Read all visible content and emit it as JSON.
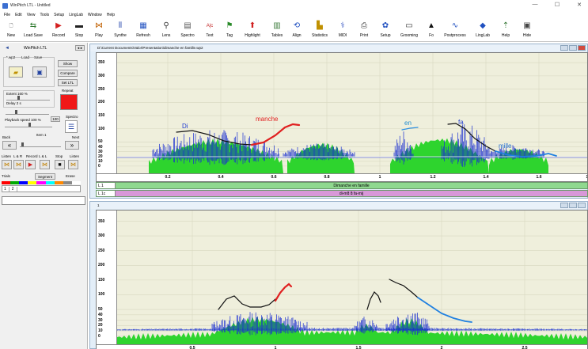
{
  "app_title": "WinPitch LTL - Untitled",
  "window_controls": [
    "—",
    "☐",
    "✕"
  ],
  "menu": [
    "File",
    "Edit",
    "View",
    "Tools",
    "Setup",
    "LingLab",
    "Window",
    "Help"
  ],
  "toolbar": [
    {
      "label": "New",
      "icon": "new-file-icon",
      "glyph": "🗋",
      "color": "#333333"
    },
    {
      "label": "Load Save",
      "icon": "load-save-icon",
      "glyph": "⇆",
      "color": "#2f7a2f"
    },
    {
      "label": "Record",
      "icon": "record-icon",
      "glyph": "▶",
      "color": "#d42020"
    },
    {
      "label": "Stop",
      "icon": "stop-icon",
      "glyph": "▬",
      "color": "#222222"
    },
    {
      "label": "Play",
      "icon": "play-icon",
      "glyph": "⋈",
      "color": "#c06000"
    },
    {
      "label": "Synthe",
      "icon": "synthe-icon",
      "glyph": "⦀",
      "color": "#3050b0"
    },
    {
      "label": "Refresh",
      "icon": "refresh-icon",
      "glyph": "▦",
      "color": "#2050c0"
    },
    {
      "label": "Lens",
      "icon": "lens-icon",
      "glyph": "⚲",
      "color": "#333333"
    },
    {
      "label": "Spectro",
      "icon": "spectro-icon",
      "glyph": "▤",
      "color": "#555555"
    },
    {
      "label": "Text",
      "icon": "text-icon",
      "glyph": "A|c",
      "color": "#c02020"
    },
    {
      "label": "Tag",
      "icon": "tag-icon",
      "glyph": "⚑",
      "color": "#2a8a2a"
    },
    {
      "label": "Highlight",
      "icon": "highlight-icon",
      "glyph": "⬆",
      "color": "#d02020"
    },
    {
      "label": "Tables",
      "icon": "tables-icon",
      "glyph": "▥",
      "color": "#3a7a3a"
    },
    {
      "label": "Align",
      "icon": "align-icon",
      "glyph": "⟲",
      "color": "#2050c0"
    },
    {
      "label": "Statistics",
      "icon": "statistics-icon",
      "glyph": "▙",
      "color": "#c09000"
    },
    {
      "label": "MIDI",
      "icon": "midi-icon",
      "glyph": "⚕",
      "color": "#3050c0"
    },
    {
      "label": "Print",
      "icon": "print-icon",
      "glyph": "⎙",
      "color": "#444444"
    },
    {
      "label": "Setup",
      "icon": "setup-icon",
      "glyph": "✿",
      "color": "#2050c0"
    },
    {
      "label": "Grooming",
      "icon": "grooming-icon",
      "glyph": "▭",
      "color": "#333333"
    },
    {
      "label": "Fo",
      "icon": "fo-icon",
      "glyph": "▲",
      "color": "#111111"
    },
    {
      "label": "Postprocess",
      "icon": "postprocess-icon",
      "glyph": "∿",
      "color": "#2050c0"
    },
    {
      "label": "LingLab",
      "icon": "linglab-icon",
      "glyph": "◆",
      "color": "#2050c0"
    },
    {
      "label": "Help",
      "icon": "help-icon",
      "glyph": "⇡",
      "color": "#3a7a3a"
    },
    {
      "label": "Hide",
      "icon": "hide-icon",
      "glyph": "▣",
      "color": "#444444"
    }
  ],
  "left_panel": {
    "title": "WinPitch LTL",
    "wp2_group": "*.wp2",
    "load_label": "Load",
    "save_label": "Save",
    "show_btn": "Show",
    "compare_btn": "Compare",
    "set_ltl_btn": "Set LTL",
    "extent_label": "Extent 160 %",
    "delay_label": "Delay 2 s",
    "repeat_label": "Repeat",
    "playback_label": "Playback speed 100 %",
    "speed_value": "100",
    "spectro_label": "Spectro",
    "back_label": "Back",
    "item_label": "Item 1",
    "next_label": "Next",
    "transport_labels": [
      "Listen",
      "L & R",
      "Record",
      "L & L",
      "Stop",
      "Listen"
    ],
    "trials_label": "Trials",
    "segment_label": "Segment",
    "erase_label": "Erase",
    "trial_numbers": [
      "1",
      "2"
    ],
    "swatch_colors": [
      "#ff0000",
      "#00aa00",
      "#0000ff",
      "#ffff00",
      "#ff00ff",
      "#00ffff",
      "#ff8800",
      "#888888",
      "#ffffff"
    ]
  },
  "window1": {
    "title": "D:\\Current Documents\\Valor\\Presentation\\dimanche en famille.wp2",
    "y_ticks": [
      "350",
      "300",
      "250",
      "200",
      "150",
      "100",
      "50",
      "40",
      "30",
      "20",
      "10",
      "0"
    ],
    "x_ticks": [
      "0.2",
      "0.4",
      "0.6",
      "0.8",
      "1",
      "1.2",
      "1.4",
      "1.6",
      "1.8"
    ],
    "syllables": [
      {
        "text": "Di",
        "color": "#1e3ad0"
      },
      {
        "text": "manche",
        "color": "#e02020"
      },
      {
        "text": "en",
        "color": "#1e8ad0"
      },
      {
        "text": "fa",
        "color": "#1e3ad0"
      },
      {
        "text": "mille",
        "color": "#1e6ad0"
      }
    ],
    "tiers": [
      {
        "name": "L 1",
        "text": "Dimanche en famille",
        "color": "#8fd88f"
      },
      {
        "name": "L 1c",
        "text": "di-mɑ̃ ɑ̃ fa-mij",
        "color": "#d898d8"
      }
    ]
  },
  "window2": {
    "title": "1",
    "y_ticks": [
      "350",
      "300",
      "250",
      "200",
      "150",
      "100",
      "50",
      "40",
      "30",
      "20",
      "10",
      "0"
    ],
    "x_ticks": [
      "0.5",
      "1",
      "1.5",
      "2",
      "2.5"
    ]
  }
}
